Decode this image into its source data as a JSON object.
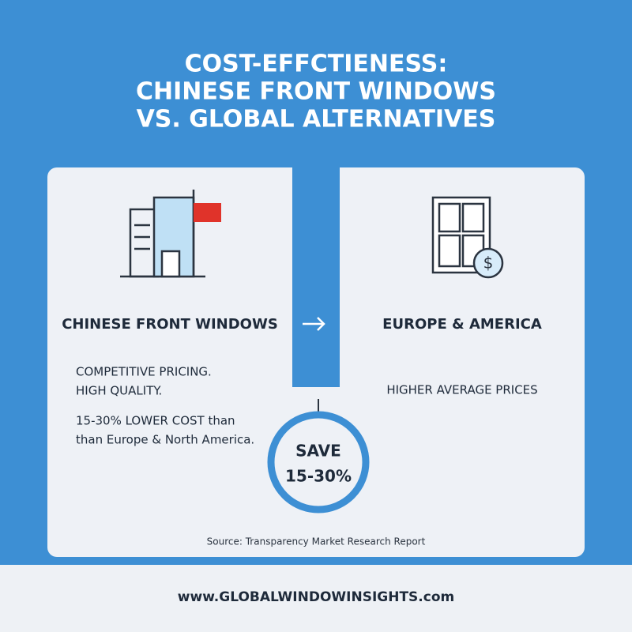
{
  "header": {
    "title_lines": [
      "COST-EFFCTIENESS:",
      "CHINESE FRONT WINDOWS",
      "VS. GLOBAL ALTERNATIVES"
    ]
  },
  "left_card": {
    "heading": "CHINESE FRONT WINDOWS",
    "points": [
      "COMPETITIVE PRICING.",
      "HIGH QUALITY."
    ],
    "cost_lines": [
      "15-30% LOWER COST than",
      "than Europe & North America."
    ]
  },
  "right_card": {
    "heading": "EUROPE & AMERICA",
    "point": "HIGHER AVERAGE PRICES"
  },
  "savings": {
    "label": "SAVE",
    "value": "15-30%"
  },
  "source": "Source: Transparency Market Research Report",
  "footer": {
    "url": "www.GLOBALWINDOWINSIGHTS.com"
  }
}
